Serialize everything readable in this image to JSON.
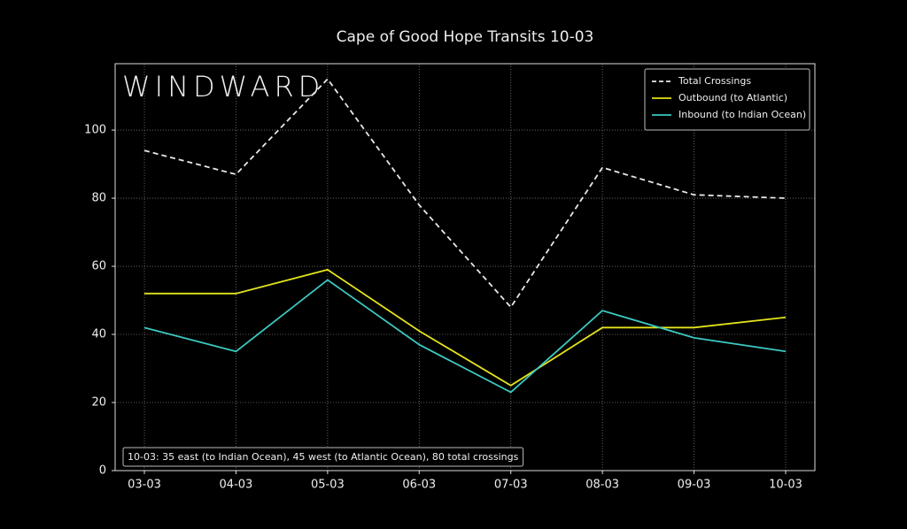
{
  "chart_data": {
    "type": "line",
    "title": "Cape of Good Hope Transits 10-03",
    "watermark": "WINDWARD",
    "annotation": "10-03: 35 east (to Indian Ocean), 45 west (to Atlantic Ocean), 80 total crossings",
    "categories": [
      "03-03",
      "04-03",
      "05-03",
      "06-03",
      "07-03",
      "08-03",
      "09-03",
      "10-03"
    ],
    "series": [
      {
        "name": "Total Crossings",
        "color": "#e8e8e8",
        "linestyle": "dashed",
        "values": [
          94,
          87,
          115,
          78,
          48,
          89,
          81,
          80
        ]
      },
      {
        "name": "Outbound (to Atlantic)",
        "color": "#e3e31c",
        "linestyle": "solid",
        "values": [
          52,
          52,
          59,
          41,
          25,
          42,
          42,
          45
        ]
      },
      {
        "name": "Inbound (to Indian Ocean)",
        "color": "#3cc8c0",
        "linestyle": "solid",
        "values": [
          42,
          35,
          56,
          37,
          23,
          47,
          39,
          35
        ]
      }
    ],
    "ylim": [
      0,
      119.5
    ],
    "yticks": [
      0,
      20,
      40,
      60,
      80,
      100
    ],
    "grid": true,
    "legend": "upper-right"
  }
}
